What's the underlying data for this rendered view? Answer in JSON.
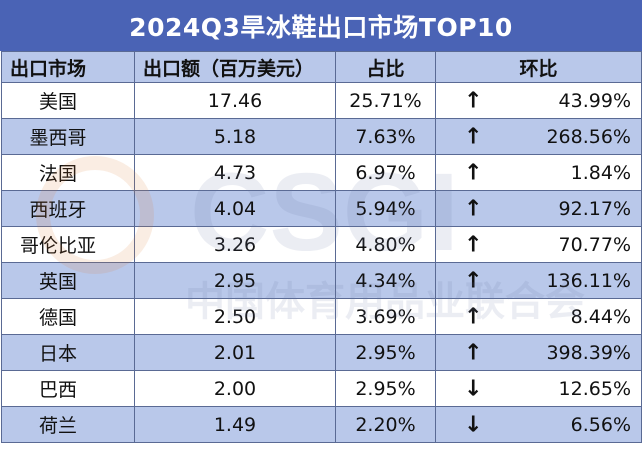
{
  "title": "2024Q3旱冰鞋出口市场TOP10",
  "headers": [
    "出口市场",
    "出口额（百万美元）",
    "占比",
    "环比"
  ],
  "rows": [
    {
      "country": "美国",
      "value": "17.46",
      "share": "25.71%",
      "arrow": "↑",
      "change": "43.99%"
    },
    {
      "country": "墨西哥",
      "value": "5.18",
      "share": "7.63%",
      "arrow": "↑",
      "change": "268.56%"
    },
    {
      "country": "法国",
      "value": "4.73",
      "share": "6.97%",
      "arrow": "↑",
      "change": "1.84%"
    },
    {
      "country": "西班牙",
      "value": "4.04",
      "share": "5.94%",
      "arrow": "↑",
      "change": "92.17%"
    },
    {
      "country": "哥伦比亚",
      "value": "3.26",
      "share": "4.80%",
      "arrow": "↑",
      "change": "70.77%"
    },
    {
      "country": "英国",
      "value": "2.95",
      "share": "4.34%",
      "arrow": "↑",
      "change": "136.11%"
    },
    {
      "country": "德国",
      "value": "2.50",
      "share": "3.69%",
      "arrow": "↑",
      "change": "8.44%"
    },
    {
      "country": "日本",
      "value": "2.01",
      "share": "2.95%",
      "arrow": "↑",
      "change": "398.39%"
    },
    {
      "country": "巴西",
      "value": "2.00",
      "share": "2.95%",
      "arrow": "↓",
      "change": "12.65%"
    },
    {
      "country": "荷兰",
      "value": "1.49",
      "share": "2.20%",
      "arrow": "↓",
      "change": "6.56%"
    }
  ],
  "watermark": {
    "logo": "CSGI",
    "text": "中国体育用品业联合会"
  },
  "colors": {
    "title_bg": "#4a63b5",
    "row_alt": "#b9c8ea",
    "border": "#5a6a94"
  }
}
